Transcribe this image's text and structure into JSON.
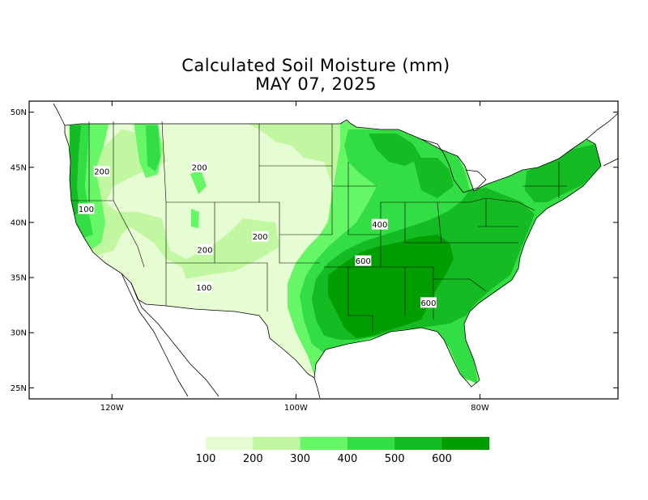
{
  "title": {
    "line1": "Calculated Soil Moisture (mm)",
    "line2": "MAY 07, 2025"
  },
  "colors": {
    "c100": "#e6fcd2",
    "c200": "#c1f7a1",
    "c300": "#66f766",
    "c400": "#33dd44",
    "c500": "#14bb22",
    "c600": "#009e00",
    "outline": "#000000"
  },
  "axes": {
    "lon_ticks": [
      {
        "label": "120W",
        "value": -120
      },
      {
        "label": "100W",
        "value": -100
      },
      {
        "label": "80W",
        "value": -80
      }
    ],
    "lat_ticks": [
      {
        "label": "50N",
        "value": 50
      },
      {
        "label": "45N",
        "value": 45
      },
      {
        "label": "40N",
        "value": 40
      },
      {
        "label": "35N",
        "value": 35
      },
      {
        "label": "30N",
        "value": 30
      },
      {
        "label": "25N",
        "value": 25
      }
    ],
    "lon_range": [
      -129,
      -65
    ],
    "lat_range": [
      24,
      51
    ]
  },
  "contour_labels": [
    {
      "text": "200",
      "lon": -121.1,
      "lat": 44.6
    },
    {
      "text": "200",
      "lon": -110.5,
      "lat": 45.0
    },
    {
      "text": "100",
      "lon": -122.8,
      "lat": 41.2
    },
    {
      "text": "200",
      "lon": -109.9,
      "lat": 37.5
    },
    {
      "text": "200",
      "lon": -103.9,
      "lat": 38.7
    },
    {
      "text": "100",
      "lon": -110.0,
      "lat": 34.1
    },
    {
      "text": "400",
      "lon": -90.9,
      "lat": 39.8
    },
    {
      "text": "600",
      "lon": -92.7,
      "lat": 36.5
    },
    {
      "text": "600",
      "lon": -85.6,
      "lat": 32.7
    }
  ],
  "legend": {
    "labels": [
      "100",
      "200",
      "300",
      "400",
      "500",
      "600"
    ]
  }
}
